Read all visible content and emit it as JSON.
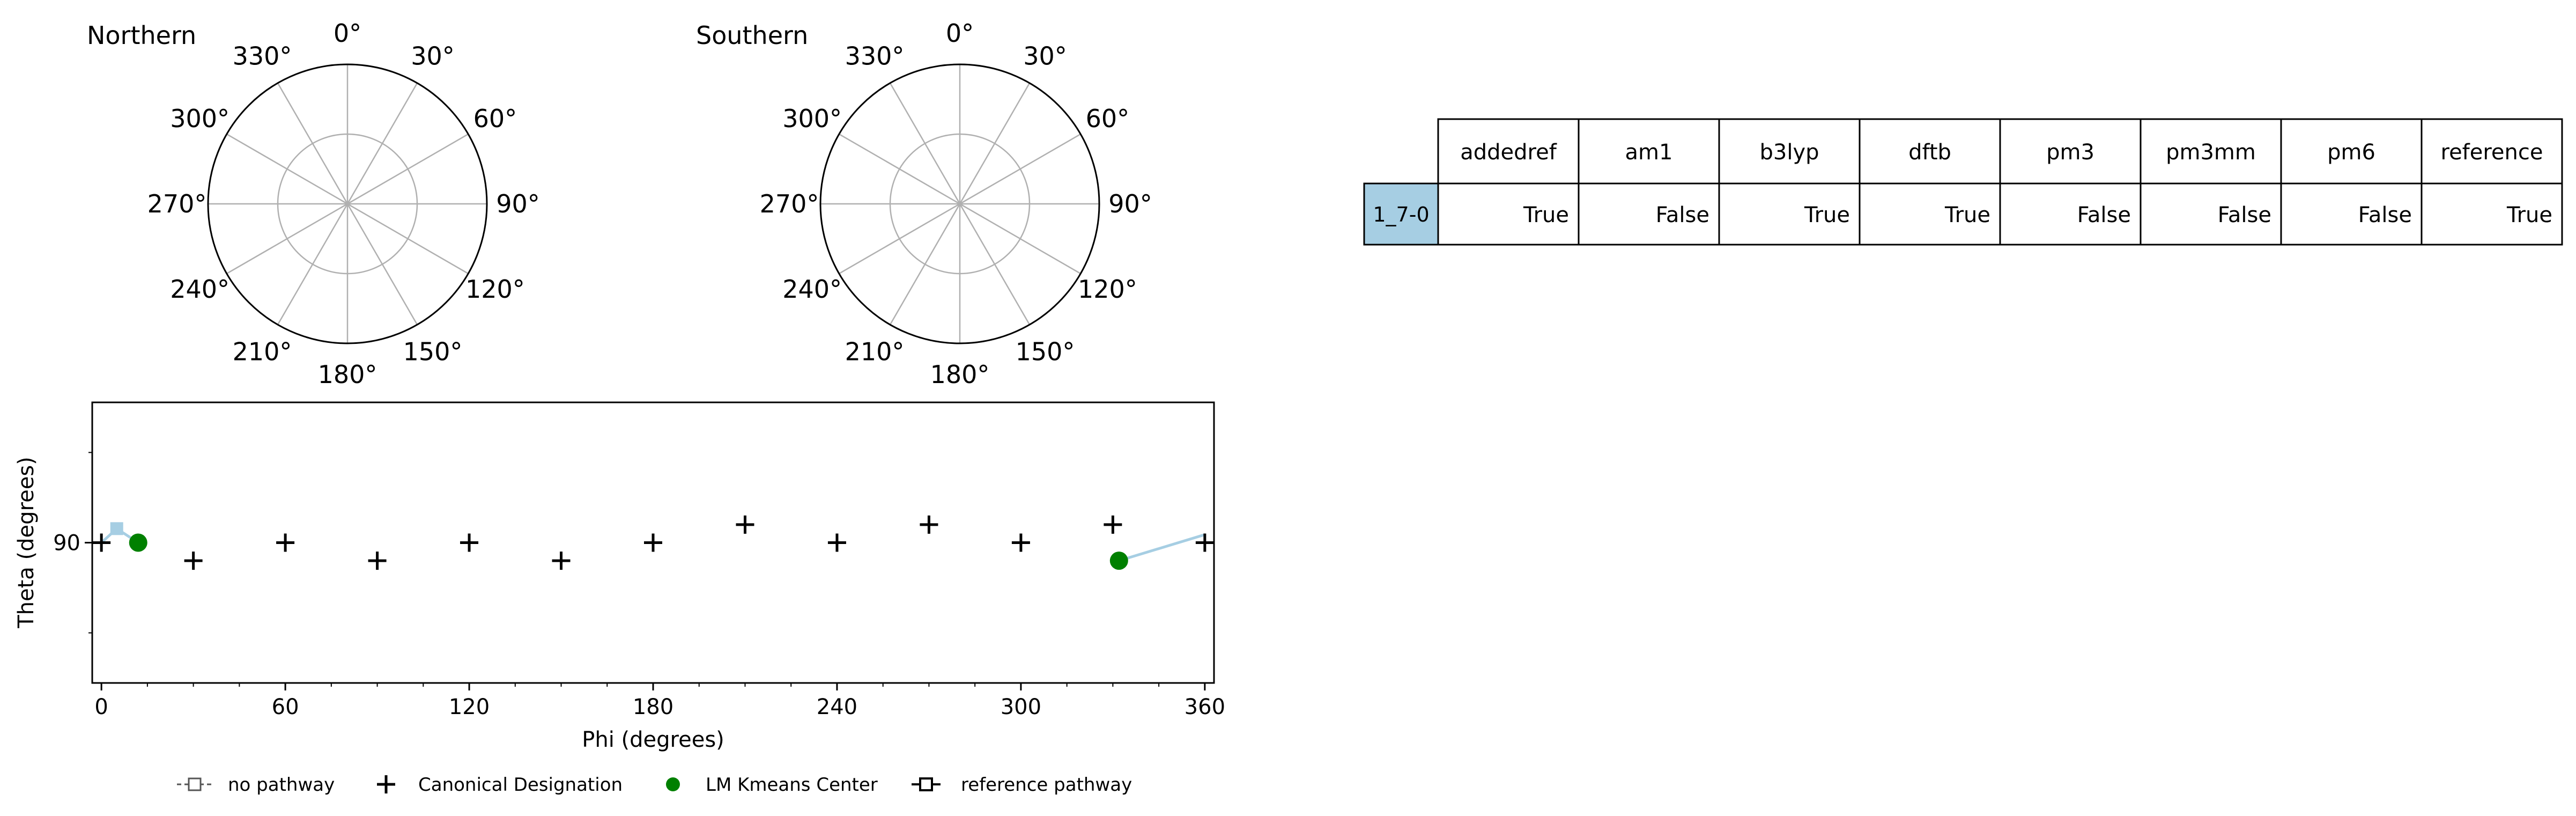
{
  "chart_data": [
    {
      "type": "polar",
      "title": "Northern",
      "tick_labels": [
        "0°",
        "30°",
        "60°",
        "90°",
        "120°",
        "150°",
        "180°",
        "210°",
        "240°",
        "270°",
        "300°",
        "330°"
      ],
      "grid": true,
      "points": []
    },
    {
      "type": "polar",
      "title": "Southern",
      "tick_labels": [
        "0°",
        "30°",
        "60°",
        "90°",
        "120°",
        "150°",
        "180°",
        "210°",
        "240°",
        "270°",
        "300°",
        "330°"
      ],
      "grid": true,
      "points": []
    },
    {
      "type": "scatter",
      "xlabel": "Phi (degrees)",
      "ylabel": "Theta (degrees)",
      "xlim": [
        -3,
        363
      ],
      "ylim": [
        55,
        125
      ],
      "xticks": [
        "0",
        "60",
        "120",
        "180",
        "240",
        "300",
        "360"
      ],
      "yticks": [
        "90"
      ],
      "grid": false,
      "canonical_designation": {
        "x": [
          0,
          30,
          60,
          90,
          120,
          150,
          180,
          210,
          240,
          270,
          300,
          330,
          360
        ],
        "y": [
          90,
          94.5,
          90,
          94.5,
          90,
          94.5,
          90,
          85.5,
          90,
          85.5,
          90,
          85.5,
          90
        ]
      },
      "lm_kmeans_center": {
        "x": [
          12,
          332
        ],
        "y": [
          90,
          94.5
        ]
      },
      "reference_pathway": {
        "segments": [
          {
            "x": [
              0,
              5,
              12
            ],
            "y": [
              90,
              86.5,
              90
            ]
          },
          {
            "x": [
              332,
              360
            ],
            "y": [
              94.5,
              88
            ]
          }
        ],
        "markers": {
          "x": [
            5
          ],
          "y": [
            86.5
          ]
        }
      },
      "colors": {
        "canonical": "#000000",
        "kmeans": "#008000",
        "pathway": "#a6cee3"
      }
    },
    {
      "type": "table",
      "columns": [
        "addedref",
        "am1",
        "b3lyp",
        "dftb",
        "pm3",
        "pm3mm",
        "pm6",
        "reference"
      ],
      "rows": [
        {
          "label": "1_7-0",
          "values": [
            "True",
            "False",
            "True",
            "True",
            "False",
            "False",
            "False",
            "True"
          ]
        }
      ],
      "row_label_color": "#a6cee3"
    }
  ],
  "legend": {
    "placement": "bottom",
    "items": [
      {
        "label": "no pathway",
        "marker": "dashed-square"
      },
      {
        "label": "Canonical Designation",
        "marker": "plus"
      },
      {
        "label": "LM Kmeans Center",
        "marker": "green-dot"
      },
      {
        "label": "reference pathway",
        "marker": "solid-square"
      }
    ]
  }
}
